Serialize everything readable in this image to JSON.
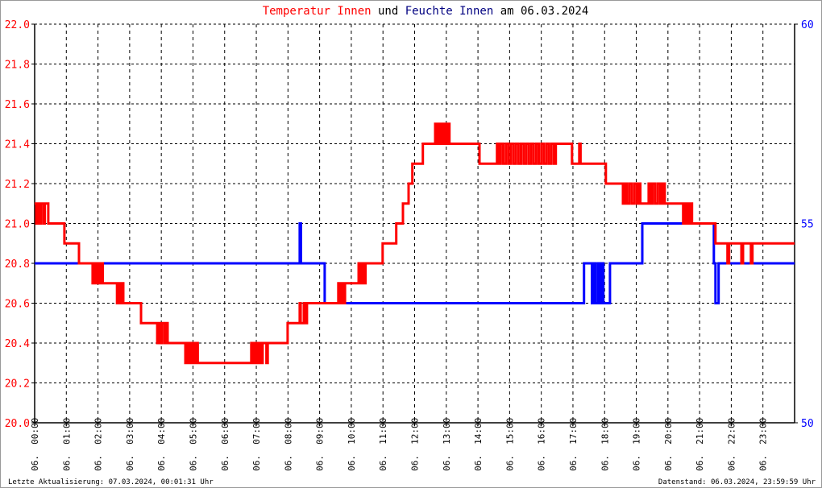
{
  "title": {
    "parts": [
      {
        "text": "Temperatur Innen",
        "color": "#ff0000"
      },
      {
        "text": " und ",
        "color": "#000000"
      },
      {
        "text": "Feuchte Innen",
        "color": "#000080"
      },
      {
        "text": " am 06.03.2024",
        "color": "#000000"
      }
    ]
  },
  "footer": {
    "left": "Letzte Aktualisierung: 07.03.2024, 00:01:31 Uhr",
    "right": "Datenstand: 06.03.2024, 23:59:59 Uhr"
  },
  "chart_data": {
    "type": "line",
    "step": true,
    "grid": true,
    "x_unit": "hour of day",
    "xlim": [
      0,
      24
    ],
    "x_tick_labels": [
      "06. 00:00",
      "06. 01:00",
      "06. 02:00",
      "06. 03:00",
      "06. 04:00",
      "06. 05:00",
      "06. 06:00",
      "06. 07:00",
      "06. 08:00",
      "06. 09:00",
      "06. 10:00",
      "06. 11:00",
      "06. 12:00",
      "06. 13:00",
      "06. 14:00",
      "06. 15:00",
      "06. 16:00",
      "06. 17:00",
      "06. 18:00",
      "06. 19:00",
      "06. 20:00",
      "06. 21:00",
      "06. 22:00",
      "06. 23:00"
    ],
    "y_left": {
      "lim": [
        20.0,
        22.0
      ],
      "ticks": [
        "20.0",
        "20.2",
        "20.4",
        "20.6",
        "20.8",
        "21.0",
        "21.2",
        "21.4",
        "21.6",
        "21.8",
        "22.0"
      ],
      "color": "#ff0000"
    },
    "y_right": {
      "lim": [
        50,
        60
      ],
      "ticks": [
        "50",
        "55",
        "60"
      ],
      "color": "#0000ff"
    },
    "series": [
      {
        "name": "Temperatur Innen",
        "axis": "left",
        "color": "#ff0000",
        "points": [
          [
            0,
            21.1
          ],
          [
            0.05,
            21.0
          ],
          [
            0.1,
            21.1
          ],
          [
            0.15,
            21.0
          ],
          [
            0.2,
            21.1
          ],
          [
            0.28,
            21.0
          ],
          [
            0.32,
            21.1
          ],
          [
            0.43,
            21.0
          ],
          [
            0.94,
            20.9
          ],
          [
            1.4,
            20.8
          ],
          [
            1.83,
            20.7
          ],
          [
            1.88,
            20.8
          ],
          [
            1.93,
            20.7
          ],
          [
            1.98,
            20.8
          ],
          [
            2.05,
            20.7
          ],
          [
            2.1,
            20.8
          ],
          [
            2.15,
            20.7
          ],
          [
            2.6,
            20.6
          ],
          [
            2.65,
            20.7
          ],
          [
            2.7,
            20.6
          ],
          [
            2.75,
            20.7
          ],
          [
            2.8,
            20.6
          ],
          [
            3.36,
            20.5
          ],
          [
            3.87,
            20.4
          ],
          [
            3.92,
            20.5
          ],
          [
            3.97,
            20.4
          ],
          [
            4.02,
            20.5
          ],
          [
            4.1,
            20.4
          ],
          [
            4.15,
            20.5
          ],
          [
            4.2,
            20.4
          ],
          [
            4.76,
            20.3
          ],
          [
            4.8,
            20.4
          ],
          [
            4.85,
            20.3
          ],
          [
            4.9,
            20.4
          ],
          [
            4.95,
            20.3
          ],
          [
            5.0,
            20.4
          ],
          [
            5.05,
            20.3
          ],
          [
            5.1,
            20.4
          ],
          [
            5.15,
            20.3
          ],
          [
            6.84,
            20.4
          ],
          [
            6.88,
            20.3
          ],
          [
            6.92,
            20.4
          ],
          [
            6.96,
            20.3
          ],
          [
            7.0,
            20.4
          ],
          [
            7.05,
            20.3
          ],
          [
            7.1,
            20.4
          ],
          [
            7.15,
            20.3
          ],
          [
            7.2,
            20.4
          ],
          [
            7.32,
            20.3
          ],
          [
            7.36,
            20.4
          ],
          [
            7.99,
            20.5
          ],
          [
            8.37,
            20.6
          ],
          [
            8.4,
            20.5
          ],
          [
            8.5,
            20.6
          ],
          [
            8.55,
            20.5
          ],
          [
            8.6,
            20.6
          ],
          [
            9.59,
            20.7
          ],
          [
            9.63,
            20.6
          ],
          [
            9.7,
            20.7
          ],
          [
            9.75,
            20.6
          ],
          [
            9.8,
            20.7
          ],
          [
            10.23,
            20.8
          ],
          [
            10.28,
            20.7
          ],
          [
            10.33,
            20.8
          ],
          [
            10.4,
            20.7
          ],
          [
            10.45,
            20.8
          ],
          [
            10.99,
            20.9
          ],
          [
            11.42,
            21.0
          ],
          [
            11.63,
            21.1
          ],
          [
            11.81,
            21.2
          ],
          [
            11.93,
            21.3
          ],
          [
            12.26,
            21.4
          ],
          [
            12.65,
            21.5
          ],
          [
            12.7,
            21.4
          ],
          [
            12.75,
            21.5
          ],
          [
            12.8,
            21.4
          ],
          [
            12.85,
            21.5
          ],
          [
            12.9,
            21.4
          ],
          [
            12.95,
            21.5
          ],
          [
            13.0,
            21.4
          ],
          [
            13.05,
            21.5
          ],
          [
            13.1,
            21.4
          ],
          [
            14.05,
            21.3
          ],
          [
            14.6,
            21.4
          ],
          [
            14.66,
            21.3
          ],
          [
            14.72,
            21.4
          ],
          [
            14.8,
            21.3
          ],
          [
            14.88,
            21.4
          ],
          [
            14.96,
            21.3
          ],
          [
            15.04,
            21.4
          ],
          [
            15.12,
            21.3
          ],
          [
            15.2,
            21.4
          ],
          [
            15.28,
            21.3
          ],
          [
            15.36,
            21.4
          ],
          [
            15.44,
            21.3
          ],
          [
            15.52,
            21.4
          ],
          [
            15.6,
            21.3
          ],
          [
            15.68,
            21.4
          ],
          [
            15.76,
            21.3
          ],
          [
            15.84,
            21.4
          ],
          [
            15.92,
            21.3
          ],
          [
            16.0,
            21.4
          ],
          [
            16.08,
            21.3
          ],
          [
            16.16,
            21.4
          ],
          [
            16.24,
            21.3
          ],
          [
            16.32,
            21.4
          ],
          [
            16.4,
            21.3
          ],
          [
            16.46,
            21.4
          ],
          [
            16.97,
            21.3
          ],
          [
            17.2,
            21.4
          ],
          [
            17.24,
            21.3
          ],
          [
            18.04,
            21.2
          ],
          [
            18.58,
            21.1
          ],
          [
            18.64,
            21.2
          ],
          [
            18.7,
            21.1
          ],
          [
            18.78,
            21.2
          ],
          [
            18.86,
            21.1
          ],
          [
            18.94,
            21.2
          ],
          [
            19.02,
            21.1
          ],
          [
            19.08,
            21.2
          ],
          [
            19.13,
            21.1
          ],
          [
            19.39,
            21.2
          ],
          [
            19.45,
            21.1
          ],
          [
            19.52,
            21.2
          ],
          [
            19.6,
            21.1
          ],
          [
            19.68,
            21.2
          ],
          [
            19.76,
            21.1
          ],
          [
            19.83,
            21.2
          ],
          [
            19.9,
            21.1
          ],
          [
            20.48,
            21.0
          ],
          [
            20.53,
            21.1
          ],
          [
            20.58,
            21.0
          ],
          [
            20.63,
            21.1
          ],
          [
            20.68,
            21.0
          ],
          [
            20.74,
            21.1
          ],
          [
            20.76,
            21.0
          ],
          [
            21.5,
            20.9
          ],
          [
            21.88,
            20.8
          ],
          [
            21.93,
            20.9
          ],
          [
            22.32,
            20.8
          ],
          [
            22.37,
            20.9
          ],
          [
            22.62,
            20.8
          ],
          [
            22.67,
            20.9
          ],
          [
            24,
            20.9
          ]
        ]
      },
      {
        "name": "Feuchte Innen",
        "axis": "right",
        "color": "#0000ff",
        "points": [
          [
            0,
            54
          ],
          [
            8.37,
            55
          ],
          [
            8.41,
            54
          ],
          [
            9.16,
            53
          ],
          [
            17.35,
            54
          ],
          [
            17.6,
            53
          ],
          [
            17.65,
            54
          ],
          [
            17.7,
            53
          ],
          [
            17.78,
            54
          ],
          [
            17.84,
            53
          ],
          [
            17.9,
            54
          ],
          [
            17.96,
            53
          ],
          [
            18.17,
            54
          ],
          [
            19.19,
            55
          ],
          [
            21.45,
            54
          ],
          [
            21.5,
            53
          ],
          [
            21.6,
            54
          ],
          [
            24,
            54
          ]
        ]
      }
    ]
  }
}
